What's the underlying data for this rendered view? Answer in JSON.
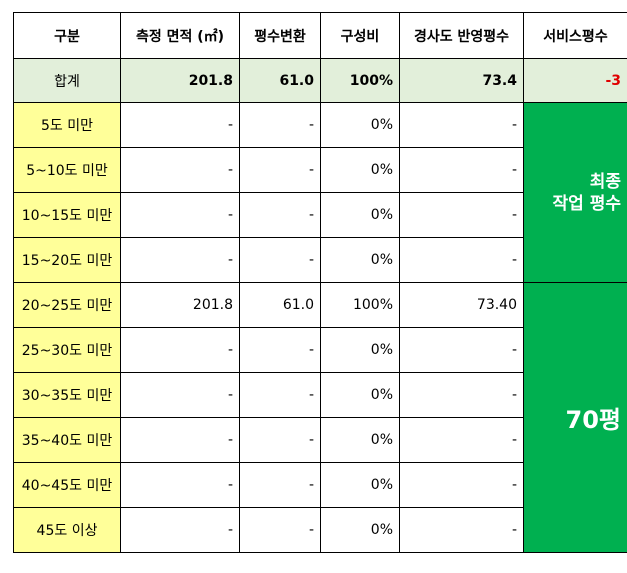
{
  "headers": [
    "구분",
    "측정 면적 (㎡)",
    "평수변환",
    "구성비",
    "경사도 반영평수",
    "서비스평수"
  ],
  "total": {
    "label": "합계",
    "area": "201.8",
    "pyeong": "61.0",
    "ratio": "100%",
    "slope_pyeong": "73.4",
    "service": "-3"
  },
  "rows": [
    {
      "label": "5도 미만",
      "area": "-",
      "pyeong": "-",
      "ratio": "0%",
      "slope_pyeong": "-"
    },
    {
      "label": "5~10도 미만",
      "area": "-",
      "pyeong": "-",
      "ratio": "0%",
      "slope_pyeong": "-"
    },
    {
      "label": "10~15도 미만",
      "area": "-",
      "pyeong": "-",
      "ratio": "0%",
      "slope_pyeong": "-"
    },
    {
      "label": "15~20도 미만",
      "area": "-",
      "pyeong": "-",
      "ratio": "0%",
      "slope_pyeong": "-"
    },
    {
      "label": "20~25도 미만",
      "area": "201.8",
      "pyeong": "61.0",
      "ratio": "100%",
      "slope_pyeong": "73.40"
    },
    {
      "label": "25~30도 미만",
      "area": "-",
      "pyeong": "-",
      "ratio": "0%",
      "slope_pyeong": "-"
    },
    {
      "label": "30~35도 미만",
      "area": "-",
      "pyeong": "-",
      "ratio": "0%",
      "slope_pyeong": "-"
    },
    {
      "label": "35~40도 미만",
      "area": "-",
      "pyeong": "-",
      "ratio": "0%",
      "slope_pyeong": "-"
    },
    {
      "label": "40~45도 미만",
      "area": "-",
      "pyeong": "-",
      "ratio": "0%",
      "slope_pyeong": "-"
    },
    {
      "label": "45도 이상",
      "area": "-",
      "pyeong": "-",
      "ratio": "0%",
      "slope_pyeong": "-"
    }
  ],
  "final_work": {
    "line1": "최종",
    "line2": "작업 평수",
    "value": "70평"
  },
  "colors": {
    "header_bg": "#ffffff",
    "total_bg": "#e2efda",
    "label_bg": "#ffff99",
    "final_bg": "#00b050",
    "negative": "#e00000"
  }
}
